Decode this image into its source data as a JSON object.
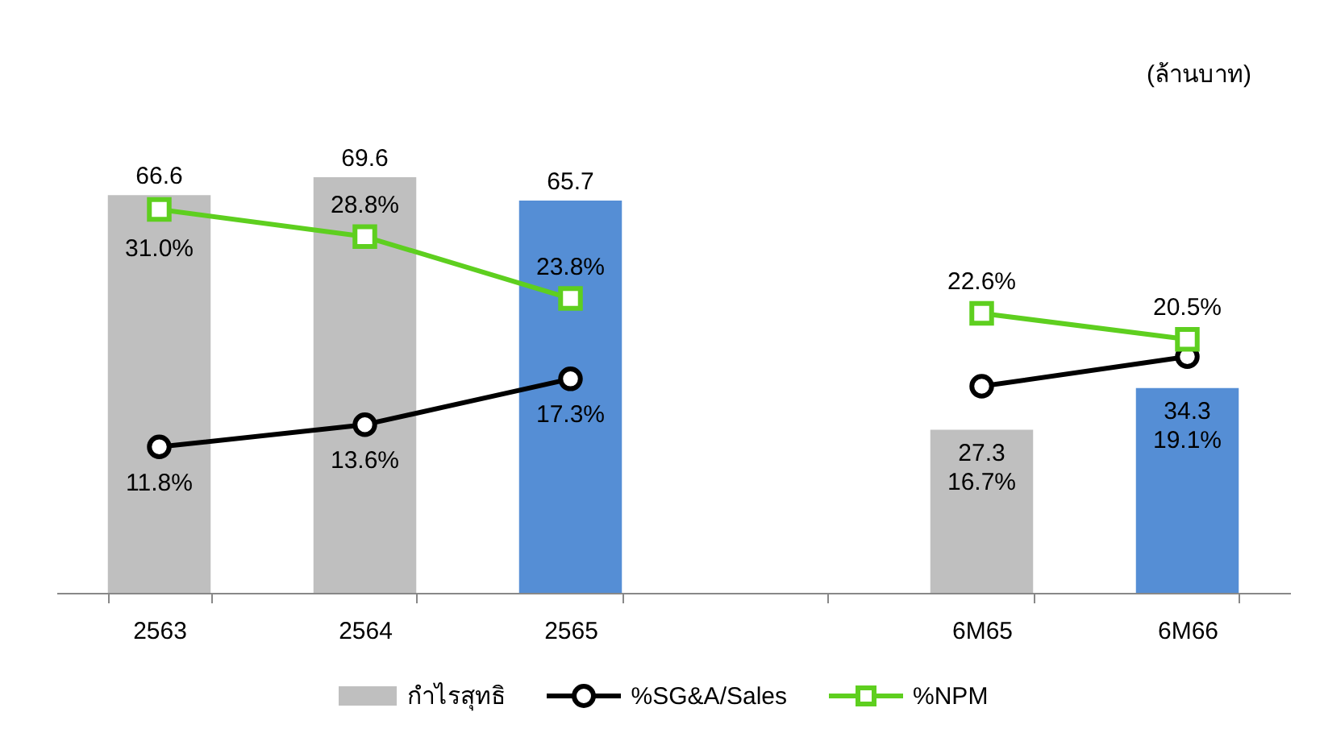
{
  "chart_data": {
    "type": "bar",
    "categories": [
      "2563",
      "2564",
      "2565",
      null,
      "6M65",
      "6M66"
    ],
    "annotations": [
      "(ล้านบาท)"
    ],
    "tick_labels": "x",
    "data_labels": true,
    "legend": "bottom",
    "grid": false,
    "series": [
      {
        "name": "กำไรสุทธิ",
        "color": "#bfbfbf",
        "colors": [
          "#bfbfbf",
          "#bfbfbf",
          "#558ed5",
          null,
          "#bfbfbf",
          "#558ed5"
        ],
        "values": [
          66.6,
          69.6,
          65.7,
          null,
          27.3,
          34.3
        ]
      },
      {
        "name": "%SG&A/Sales",
        "type": "line",
        "axis": "y2",
        "color": "#000000",
        "marker": "circle",
        "values": [
          11.8,
          13.6,
          17.3,
          null,
          16.7,
          19.1
        ],
        "value_labels": [
          "11.8%",
          "13.6%",
          "17.3%",
          null,
          "16.7%",
          "19.1%"
        ]
      },
      {
        "name": "%NPM",
        "type": "line",
        "axis": "y2",
        "color": "#5ecf1f",
        "marker": "square",
        "values": [
          31.0,
          28.8,
          23.8,
          null,
          22.6,
          20.5
        ],
        "value_labels": [
          "31.0%",
          "28.8%",
          "23.8%",
          null,
          "22.6%",
          "20.5%"
        ]
      }
    ]
  }
}
